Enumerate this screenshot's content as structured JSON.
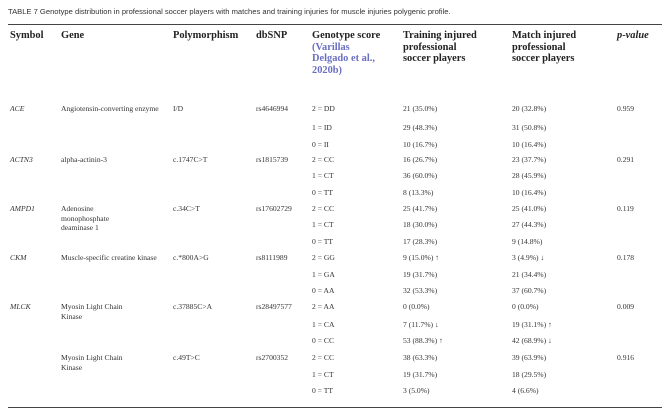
{
  "caption": "TABLE 7 Genotype distribution in professional soccer players with matches and training injuries for muscle injuries polygenic profile.",
  "headers": {
    "symbol": "Symbol",
    "gene": "Gene",
    "polymorphism": "Polymorphism",
    "dbsnp": "dbSNP",
    "score_line1": "Genotype score",
    "score_cite1": "(Varillas",
    "score_cite2": "Delgado et al.,",
    "score_cite3": "2020b)",
    "training_line1": "Training injured",
    "training_line2": "professional",
    "training_line3": "soccer players",
    "match_line1": "Match injured",
    "match_line2": "professional",
    "match_line3": "soccer players",
    "pvalue": "p-value"
  },
  "groups": [
    {
      "symbol": "ACE",
      "gene": "Angiotensin-converting enzyme",
      "polymorphism": "I/D",
      "dbsnp": "rs4646994",
      "pvalue": "0.959",
      "rows": [
        {
          "score": "2 = DD",
          "training": "21 (35.0%)",
          "match": "20 (32.8%)"
        },
        {
          "score": "1 = ID",
          "training": "29 (48.3%)",
          "match": "31 (50.8%)"
        },
        {
          "score": "0 = II",
          "training": "10 (16.7%)",
          "match": "10 (16.4%)"
        }
      ]
    },
    {
      "symbol": "ACTN3",
      "gene": "alpha-actinin-3",
      "polymorphism": "c.1747C>T",
      "dbsnp": "rs1815739",
      "pvalue": "0.291",
      "rows": [
        {
          "score": "2 = CC",
          "training": "16 (26.7%)",
          "match": "23 (37.7%)"
        },
        {
          "score": "1 = CT",
          "training": "36 (60.0%)",
          "match": "28 (45.9%)"
        },
        {
          "score": "0 = TT",
          "training": "8 (13.3%)",
          "match": "10 (16.4%)"
        }
      ]
    },
    {
      "symbol": "AMPD1",
      "gene": "Adenosine monophosphate deaminase 1",
      "polymorphism": "c.34C>T",
      "dbsnp": "rs17602729",
      "pvalue": "0.119",
      "rows": [
        {
          "score": "2 = CC",
          "training": "25 (41.7%)",
          "match": "25 (41.0%)"
        },
        {
          "score": "1 = CT",
          "training": "18 (30.0%)",
          "match": "27 (44.3%)"
        },
        {
          "score": "0 = TT",
          "training": "17 (28.3%)",
          "match": "9 (14.8%)"
        }
      ]
    },
    {
      "symbol": "CKM",
      "gene": "Muscle-specific creatine kinase",
      "polymorphism": "c.*800A>G",
      "dbsnp": "rs8111989",
      "pvalue": "0.178",
      "rows": [
        {
          "score": "2 = GG",
          "training": "9 (15.0%) ↑",
          "match": "3 (4.9%) ↓"
        },
        {
          "score": "1 = GA",
          "training": "19 (31.7%)",
          "match": "21 (34.4%)"
        },
        {
          "score": "0 = AA",
          "training": "32 (53.3%)",
          "match": "37 (60.7%)"
        }
      ]
    },
    {
      "symbol": "MLCK",
      "gene": "Myosin Light Chain Kinase",
      "polymorphism": "c.37885C>A",
      "dbsnp": "rs28497577",
      "pvalue": "0.009",
      "rows": [
        {
          "score": "2 = AA",
          "training": "0 (0.0%)",
          "match": "0 (0.0%)"
        },
        {
          "score": "1 = CA",
          "training": "7 (11.7%) ↓",
          "match": "19 (31.1%) ↑"
        },
        {
          "score": "0 = CC",
          "training": "53 (88.3%) ↑",
          "match": "42 (68.9%) ↓"
        }
      ]
    },
    {
      "symbol": "",
      "gene": "Myosin Light Chain Kinase",
      "polymorphism": "c.49T>C",
      "dbsnp": "rs2700352",
      "pvalue": "0.916",
      "rows": [
        {
          "score": "2 = CC",
          "training": "38 (63.3%)",
          "match": "39 (63.9%)"
        },
        {
          "score": "1 = CT",
          "training": "19 (31.7%)",
          "match": "18 (29.5%)"
        },
        {
          "score": "0 = TT",
          "training": "3 (5.0%)",
          "match": "4 (6.6%)"
        }
      ]
    }
  ]
}
